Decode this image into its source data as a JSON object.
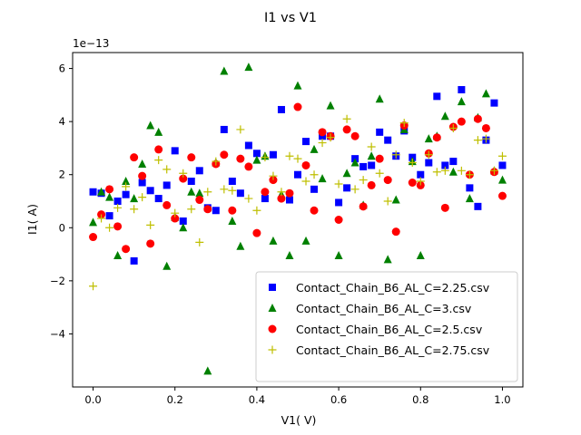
{
  "chart_data": {
    "type": "scatter",
    "title": "I1 vs V1",
    "xlabel": "V1( V)",
    "ylabel": "I1( A)",
    "y_offset_text": "1e−13",
    "xlim": [
      -0.05,
      1.05
    ],
    "ylim": [
      -6.0,
      6.6
    ],
    "x_ticks": [
      0.0,
      0.2,
      0.4,
      0.6,
      0.8,
      1.0
    ],
    "x_tick_labels": [
      "0.0",
      "0.2",
      "0.4",
      "0.6",
      "0.8",
      "1.0"
    ],
    "y_ticks": [
      -4,
      -2,
      0,
      2,
      4,
      6
    ],
    "y_tick_labels": [
      "−4",
      "−2",
      "0",
      "2",
      "4",
      "6"
    ],
    "grid": false,
    "legend_position": "lower-right",
    "x": [
      0.0,
      0.02,
      0.04,
      0.06,
      0.08,
      0.1,
      0.12,
      0.14,
      0.16,
      0.18,
      0.2,
      0.22,
      0.24,
      0.26,
      0.28,
      0.3,
      0.32,
      0.34,
      0.36,
      0.38,
      0.4,
      0.42,
      0.44,
      0.46,
      0.48,
      0.5,
      0.52,
      0.54,
      0.56,
      0.58,
      0.6,
      0.62,
      0.64,
      0.66,
      0.68,
      0.7,
      0.72,
      0.74,
      0.76,
      0.78,
      0.8,
      0.82,
      0.84,
      0.86,
      0.88,
      0.9,
      0.92,
      0.94,
      0.96,
      0.98,
      1.0
    ],
    "series": [
      {
        "name": "Contact_Chain_B6_AL_C=2.25.csv",
        "marker": "square",
        "color": "#0000ff",
        "values": [
          1.35,
          1.3,
          0.45,
          1.0,
          1.25,
          -1.25,
          1.7,
          1.4,
          1.1,
          1.6,
          2.9,
          0.25,
          1.75,
          2.15,
          0.75,
          0.65,
          3.7,
          1.75,
          1.3,
          3.1,
          2.8,
          1.1,
          2.75,
          4.45,
          1.05,
          2.0,
          3.25,
          1.45,
          3.45,
          3.45,
          0.95,
          1.5,
          2.6,
          2.3,
          2.35,
          3.6,
          3.3,
          2.7,
          3.65,
          2.65,
          2.0,
          2.45,
          4.95,
          2.35,
          2.5,
          5.2,
          1.5,
          0.8,
          3.3,
          4.7,
          2.35
        ]
      },
      {
        "name": "Contact_Chain_B6_AL_C=3.csv",
        "marker": "triangle",
        "color": "#008000",
        "values": [
          0.2,
          1.35,
          1.15,
          -1.05,
          1.75,
          1.1,
          2.4,
          3.85,
          3.6,
          -1.45,
          0.4,
          0.0,
          1.35,
          1.3,
          -5.4,
          2.45,
          5.9,
          0.25,
          -0.7,
          6.05,
          2.55,
          2.7,
          -0.5,
          1.25,
          -1.05,
          5.35,
          -0.5,
          2.95,
          1.85,
          4.6,
          -1.05,
          2.05,
          2.45,
          0.85,
          2.7,
          4.85,
          -1.2,
          1.05,
          3.7,
          2.5,
          -1.05,
          3.35,
          3.45,
          4.2,
          2.1,
          4.75,
          1.1,
          4.15,
          5.05,
          2.15,
          1.8
        ]
      },
      {
        "name": "Contact_Chain_B6_AL_C=2.5.csv",
        "marker": "circle",
        "color": "#ff0000",
        "values": [
          -0.35,
          0.5,
          1.45,
          0.05,
          -0.8,
          2.65,
          1.95,
          -0.6,
          2.95,
          0.85,
          0.35,
          1.85,
          2.65,
          1.05,
          0.7,
          2.4,
          2.75,
          0.65,
          2.6,
          2.3,
          -0.2,
          1.35,
          1.8,
          1.1,
          1.3,
          4.55,
          2.35,
          0.65,
          3.6,
          3.45,
          0.3,
          3.7,
          3.45,
          0.8,
          1.6,
          2.6,
          1.8,
          -0.15,
          3.85,
          1.7,
          1.6,
          2.8,
          3.4,
          0.75,
          3.8,
          4.0,
          2.0,
          4.1,
          3.75,
          2.1,
          1.2
        ]
      },
      {
        "name": "Contact_Chain_B6_AL_C=2.75.csv",
        "marker": "plus",
        "color": "#bfbf00",
        "values": [
          -2.2,
          0.35,
          0.0,
          0.75,
          1.55,
          0.7,
          1.15,
          0.1,
          2.55,
          2.2,
          0.55,
          2.05,
          0.7,
          -0.55,
          1.35,
          2.5,
          1.45,
          1.4,
          3.7,
          1.1,
          0.65,
          2.65,
          1.95,
          1.35,
          2.7,
          2.6,
          1.75,
          2.0,
          3.2,
          3.4,
          1.65,
          4.1,
          1.45,
          1.8,
          3.05,
          2.05,
          1.0,
          2.75,
          3.95,
          2.45,
          1.75,
          2.75,
          2.1,
          2.15,
          3.75,
          2.15,
          2.0,
          3.3,
          3.35,
          2.15,
          2.7
        ]
      }
    ]
  }
}
